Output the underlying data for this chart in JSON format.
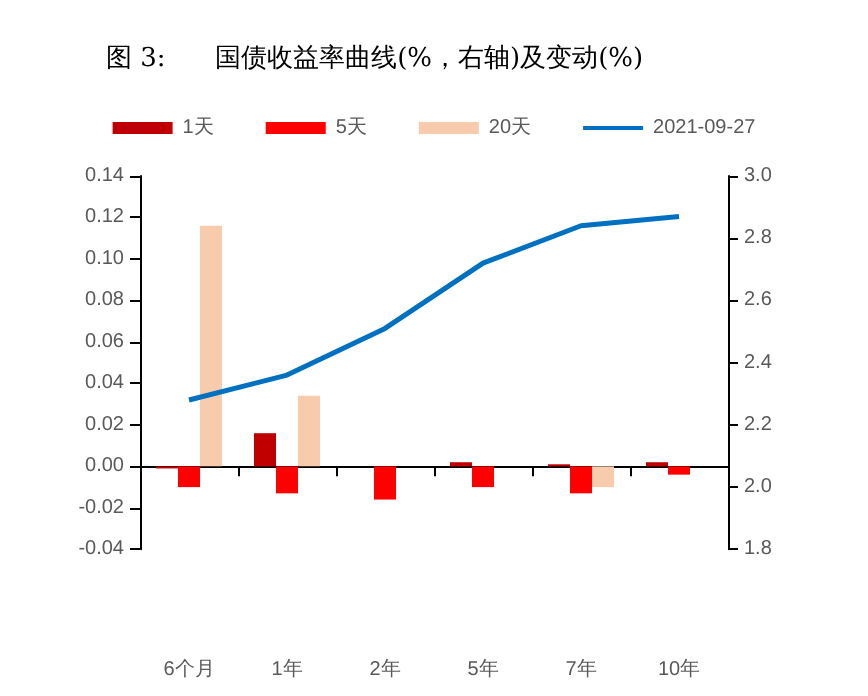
{
  "chart_data": {
    "type": "bar",
    "title": "图 3:      国债收益率曲线(%，右轴)及变动(%)",
    "categories": [
      "6个月",
      "1年",
      "2年",
      "5年",
      "7年",
      "10年"
    ],
    "series": [
      {
        "name": "1天",
        "color": "#c00000",
        "values": [
          -0.001,
          0.016,
          0,
          0.002,
          0.001,
          0.002
        ]
      },
      {
        "name": "5天",
        "color": "#ff0000",
        "values": [
          -0.01,
          -0.013,
          -0.016,
          -0.01,
          -0.013,
          -0.004
        ]
      },
      {
        "name": "20天",
        "color": "#f8cbad",
        "values": [
          0.116,
          0.034,
          0,
          0,
          -0.01,
          0
        ]
      },
      {
        "name": "2021-09-27",
        "type": "line",
        "axis": "y2",
        "color": "#0070c0",
        "values": [
          2.28,
          2.36,
          2.51,
          2.72,
          2.84,
          2.87
        ]
      }
    ],
    "ylim": [
      -0.04,
      0.14
    ],
    "yticks": [
      {
        "value": -0.04,
        "label": "-0.04"
      },
      {
        "value": -0.02,
        "label": "-0.02"
      },
      {
        "value": 0,
        "label": "0.00"
      },
      {
        "value": 0.02,
        "label": "0.02"
      },
      {
        "value": 0.04,
        "label": "0.04"
      },
      {
        "value": 0.06,
        "label": "0.06"
      },
      {
        "value": 0.08,
        "label": "0.08"
      },
      {
        "value": 0.1,
        "label": "0.10"
      },
      {
        "value": 0.12,
        "label": "0.12"
      },
      {
        "value": 0.14,
        "label": "0.14"
      }
    ],
    "y2lim": [
      1.8,
      3.0
    ],
    "y2ticks": [
      {
        "value": 1.8,
        "label": "1.8"
      },
      {
        "value": 2,
        "label": "2.0"
      },
      {
        "value": 2.2,
        "label": "2.2"
      },
      {
        "value": 2.4,
        "label": "2.4"
      },
      {
        "value": 2.6,
        "label": "2.6"
      },
      {
        "value": 2.8,
        "label": "2.8"
      },
      {
        "value": 3,
        "label": "3.0"
      }
    ],
    "legend": "top",
    "marker": "none"
  }
}
